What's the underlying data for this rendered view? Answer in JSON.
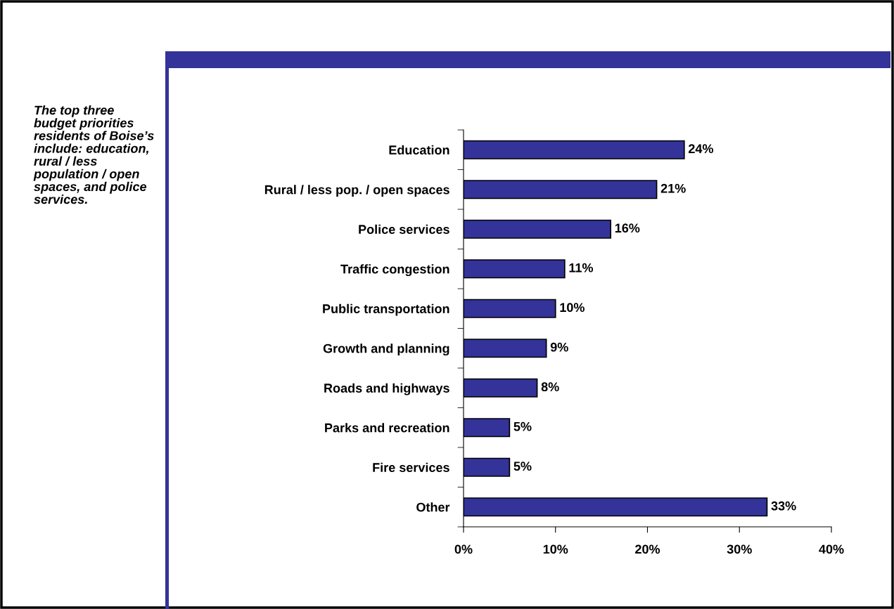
{
  "chart_data": {
    "type": "bar",
    "orientation": "horizontal",
    "categories": [
      "Education",
      "Rural / less pop. / open spaces",
      "Police services",
      "Traffic congestion",
      "Public transportation",
      "Growth and planning",
      "Roads and highways",
      "Parks and recreation",
      "Fire services",
      "Other"
    ],
    "values": [
      24,
      21,
      16,
      11,
      10,
      9,
      8,
      5,
      5,
      33
    ],
    "value_labels": [
      "24%",
      "21%",
      "16%",
      "11%",
      "10%",
      "9%",
      "8%",
      "5%",
      "5%",
      "33%"
    ],
    "color": "#333399",
    "xlim": [
      0,
      40
    ],
    "xticks": [
      {
        "value": 0,
        "label": "0%"
      },
      {
        "value": 10,
        "label": "10%"
      },
      {
        "value": 20,
        "label": "20%"
      },
      {
        "value": 30,
        "label": "30%"
      },
      {
        "value": 40,
        "label": "40%"
      }
    ],
    "grid": false,
    "legend": false,
    "annotations": [
      "The top three budget priorities residents of Boise’s include: education, rural / less population / open spaces, and police services."
    ]
  }
}
